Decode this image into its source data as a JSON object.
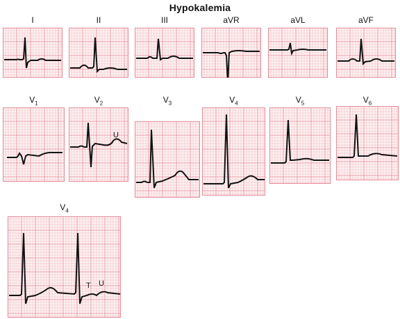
{
  "title": "Hypokalemia",
  "leads": [
    {
      "id": "I",
      "base": "I",
      "sub": ""
    },
    {
      "id": "II",
      "base": "II",
      "sub": ""
    },
    {
      "id": "III",
      "base": "III",
      "sub": ""
    },
    {
      "id": "aVR",
      "base": "aVR",
      "sub": ""
    },
    {
      "id": "aVL",
      "base": "aVL",
      "sub": ""
    },
    {
      "id": "aVF",
      "base": "aVF",
      "sub": ""
    },
    {
      "id": "V1",
      "base": "V",
      "sub": "1"
    },
    {
      "id": "V2",
      "base": "V",
      "sub": "2"
    },
    {
      "id": "V3",
      "base": "V",
      "sub": "3"
    },
    {
      "id": "V4",
      "base": "V",
      "sub": "4"
    },
    {
      "id": "V5",
      "base": "V",
      "sub": "5"
    },
    {
      "id": "V6",
      "base": "V",
      "sub": "6"
    },
    {
      "id": "V4-rhythm",
      "base": "V",
      "sub": "4"
    }
  ],
  "annotations": {
    "v2_u": "U",
    "rhythm_t": "T",
    "rhythm_u": "U"
  },
  "colors": {
    "grid_minor": "#f2b8bf",
    "grid_major": "#e48a96",
    "trace": "#111111",
    "background": "#fdf3f3"
  }
}
